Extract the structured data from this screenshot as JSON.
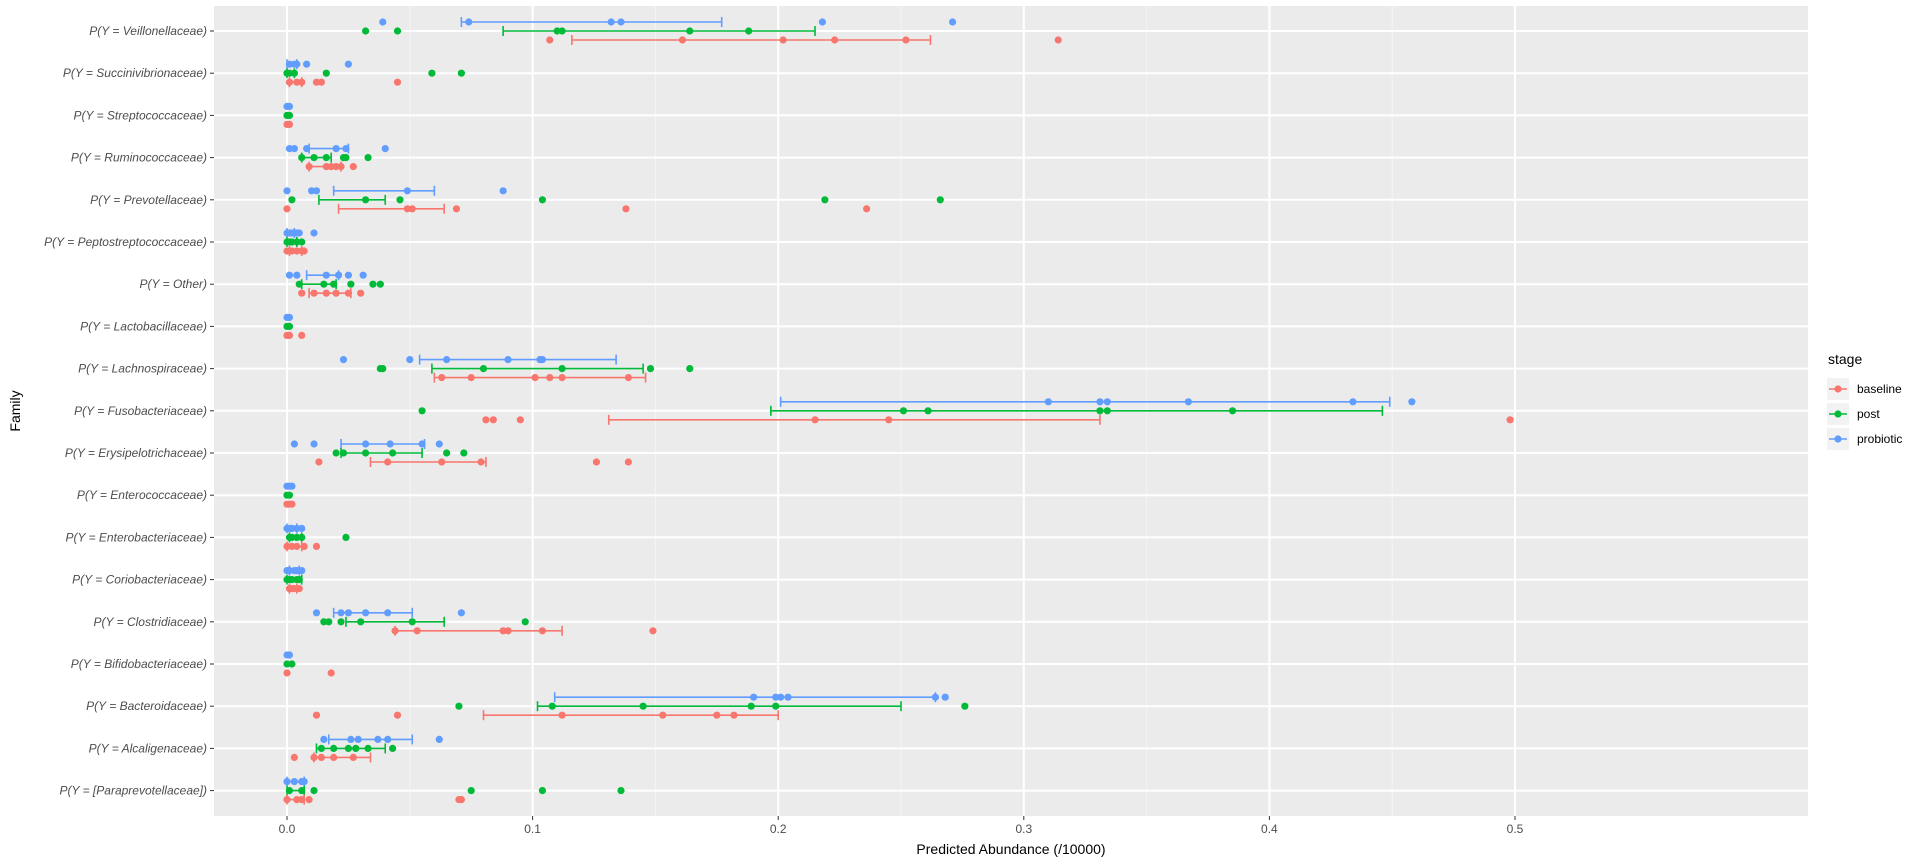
{
  "chart_data": {
    "type": "scatter",
    "title": "",
    "xlabel": "Predicted Abundance (/10000)",
    "ylabel": "Family",
    "xlim": [
      -0.025,
      0.525
    ],
    "xticks": [
      0,
      0.1,
      0.2,
      0.3,
      0.4,
      0.5
    ],
    "xtick_labels": [
      "0.0",
      "0.1",
      "0.2",
      "0.3",
      "0.4",
      "0.5"
    ],
    "grid": true,
    "legend_position": "right",
    "legend_title": "stage",
    "series_colors": {
      "baseline": "#F8766D",
      "post": "#00BA38",
      "probiotic": "#619CFF"
    },
    "stages": [
      "baseline",
      "post",
      "probiotic"
    ],
    "categories": [
      "P(Y = Veillonellaceae)",
      "P(Y = Succinivibrionaceae)",
      "P(Y = Streptococcaceae)",
      "P(Y = Ruminococcaceae)",
      "P(Y = Prevotellaceae)",
      "P(Y = Peptostreptococcaceae)",
      "P(Y = Other)",
      "P(Y = Lactobacillaceae)",
      "P(Y = Lachnospiraceae)",
      "P(Y = Fusobacteriaceae)",
      "P(Y = Erysipelotrichaceae)",
      "P(Y = Enterococcaceae)",
      "P(Y = Enterobacteriaceae)",
      "P(Y = Coriobacteriaceae)",
      "P(Y = Clostridiaceae)",
      "P(Y = Bifidobacteriaceae)",
      "P(Y = Bacteroidaceae)",
      "P(Y = Alcaligenaceae)",
      "P(Y = [Paraprevotellaceae])"
    ],
    "groups": [
      {
        "family": "P(Y = Veillonellaceae)",
        "series": [
          {
            "stage": "probiotic",
            "points": [
              0.039,
              0.074,
              0.132,
              0.136,
              0.218,
              0.271
            ],
            "interval": [
              0.071,
              0.177
            ]
          },
          {
            "stage": "post",
            "points": [
              0.032,
              0.045,
              0.11,
              0.112,
              0.164,
              0.188
            ],
            "interval": [
              0.088,
              0.215
            ]
          },
          {
            "stage": "baseline",
            "points": [
              0.107,
              0.161,
              0.202,
              0.223,
              0.252,
              0.314
            ],
            "interval": [
              0.116,
              0.262
            ]
          }
        ]
      },
      {
        "family": "P(Y = Succinivibrionaceae)",
        "series": [
          {
            "stage": "probiotic",
            "points": [
              0.001,
              0.003,
              0.004,
              0.008,
              0.025
            ],
            "interval": [
              0.0,
              0.004
            ]
          },
          {
            "stage": "post",
            "points": [
              0.0,
              0.001,
              0.003,
              0.016,
              0.059,
              0.071
            ],
            "interval": [
              0.0,
              0.003
            ]
          },
          {
            "stage": "baseline",
            "points": [
              0.001,
              0.004,
              0.006,
              0.012,
              0.014,
              0.045
            ],
            "interval": [
              0.001,
              0.006
            ]
          }
        ]
      },
      {
        "family": "P(Y = Streptococcaceae)",
        "series": [
          {
            "stage": "probiotic",
            "points": [
              0.0,
              0.001
            ],
            "interval": null
          },
          {
            "stage": "post",
            "points": [
              0.0,
              0.001
            ],
            "interval": null
          },
          {
            "stage": "baseline",
            "points": [
              0.0,
              0.001
            ],
            "interval": null
          }
        ]
      },
      {
        "family": "P(Y = Ruminococcaceae)",
        "series": [
          {
            "stage": "probiotic",
            "points": [
              0.001,
              0.003,
              0.008,
              0.02,
              0.024,
              0.04
            ],
            "interval": [
              0.009,
              0.025
            ]
          },
          {
            "stage": "post",
            "points": [
              0.006,
              0.011,
              0.016,
              0.023,
              0.024,
              0.033
            ],
            "interval": [
              0.006,
              0.018
            ]
          },
          {
            "stage": "baseline",
            "points": [
              0.009,
              0.016,
              0.018,
              0.02,
              0.022,
              0.027
            ],
            "interval": [
              0.009,
              0.022
            ]
          }
        ]
      },
      {
        "family": "P(Y = Prevotellaceae)",
        "series": [
          {
            "stage": "probiotic",
            "points": [
              0.0,
              0.01,
              0.012,
              0.049,
              0.088
            ],
            "interval": [
              0.019,
              0.06
            ]
          },
          {
            "stage": "post",
            "points": [
              0.002,
              0.032,
              0.046,
              0.104,
              0.219,
              0.266
            ],
            "interval": [
              0.013,
              0.04
            ]
          },
          {
            "stage": "baseline",
            "points": [
              0.0,
              0.049,
              0.051,
              0.069,
              0.138,
              0.236
            ],
            "interval": [
              0.021,
              0.064
            ]
          }
        ]
      },
      {
        "family": "P(Y = Peptostreptococcaceae)",
        "series": [
          {
            "stage": "probiotic",
            "points": [
              0.0,
              0.001,
              0.002,
              0.004,
              0.005,
              0.011
            ],
            "interval": [
              0.0,
              0.003
            ]
          },
          {
            "stage": "post",
            "points": [
              0.0,
              0.001,
              0.002,
              0.004,
              0.006
            ],
            "interval": [
              0.0,
              0.004
            ]
          },
          {
            "stage": "baseline",
            "points": [
              0.0,
              0.002,
              0.004,
              0.006,
              0.007
            ],
            "interval": [
              0.001,
              0.006
            ]
          }
        ]
      },
      {
        "family": "P(Y = Other)",
        "series": [
          {
            "stage": "probiotic",
            "points": [
              0.001,
              0.004,
              0.016,
              0.021,
              0.025,
              0.031
            ],
            "interval": [
              0.008,
              0.021
            ]
          },
          {
            "stage": "post",
            "points": [
              0.005,
              0.015,
              0.019,
              0.026,
              0.035,
              0.038
            ],
            "interval": [
              0.006,
              0.02
            ]
          },
          {
            "stage": "baseline",
            "points": [
              0.006,
              0.011,
              0.016,
              0.02,
              0.025,
              0.03
            ],
            "interval": [
              0.009,
              0.026
            ]
          }
        ]
      },
      {
        "family": "P(Y = Lactobacillaceae)",
        "series": [
          {
            "stage": "probiotic",
            "points": [
              0.0,
              0.001
            ],
            "interval": null
          },
          {
            "stage": "post",
            "points": [
              0.0,
              0.001
            ],
            "interval": null
          },
          {
            "stage": "baseline",
            "points": [
              0.0,
              0.001,
              0.006
            ],
            "interval": null
          }
        ]
      },
      {
        "family": "P(Y = Lachnospiraceae)",
        "series": [
          {
            "stage": "probiotic",
            "points": [
              0.023,
              0.05,
              0.065,
              0.09,
              0.103,
              0.104
            ],
            "interval": [
              0.054,
              0.134
            ]
          },
          {
            "stage": "post",
            "points": [
              0.038,
              0.039,
              0.08,
              0.112,
              0.148,
              0.164
            ],
            "interval": [
              0.059,
              0.145
            ]
          },
          {
            "stage": "baseline",
            "points": [
              0.063,
              0.075,
              0.101,
              0.107,
              0.112,
              0.139
            ],
            "interval": [
              0.06,
              0.146
            ]
          }
        ]
      },
      {
        "family": "P(Y = Fusobacteriaceae)",
        "series": [
          {
            "stage": "probiotic",
            "points": [
              0.31,
              0.331,
              0.334,
              0.367,
              0.434,
              0.458
            ],
            "interval": [
              0.201,
              0.449
            ]
          },
          {
            "stage": "post",
            "points": [
              0.055,
              0.251,
              0.261,
              0.331,
              0.334,
              0.385
            ],
            "interval": [
              0.197,
              0.446
            ]
          },
          {
            "stage": "baseline",
            "points": [
              0.081,
              0.084,
              0.095,
              0.215,
              0.245,
              0.498
            ],
            "interval": [
              0.131,
              0.331
            ]
          }
        ]
      },
      {
        "family": "P(Y = Erysipelotrichaceae)",
        "series": [
          {
            "stage": "probiotic",
            "points": [
              0.003,
              0.011,
              0.032,
              0.042,
              0.055,
              0.062
            ],
            "interval": [
              0.022,
              0.056
            ]
          },
          {
            "stage": "post",
            "points": [
              0.02,
              0.023,
              0.032,
              0.043,
              0.065,
              0.072
            ],
            "interval": [
              0.022,
              0.055
            ]
          },
          {
            "stage": "baseline",
            "points": [
              0.013,
              0.041,
              0.063,
              0.079,
              0.126,
              0.139
            ],
            "interval": [
              0.034,
              0.081
            ]
          }
        ]
      },
      {
        "family": "P(Y = Enterococcaceae)",
        "series": [
          {
            "stage": "probiotic",
            "points": [
              0.0,
              0.001,
              0.002
            ],
            "interval": null
          },
          {
            "stage": "post",
            "points": [
              0.0,
              0.001
            ],
            "interval": null
          },
          {
            "stage": "baseline",
            "points": [
              0.0,
              0.001,
              0.002
            ],
            "interval": null
          }
        ]
      },
      {
        "family": "P(Y = Enterobacteriaceae)",
        "series": [
          {
            "stage": "probiotic",
            "points": [
              0.0,
              0.001,
              0.002,
              0.004,
              0.006
            ],
            "interval": [
              0.0,
              0.004
            ]
          },
          {
            "stage": "post",
            "points": [
              0.001,
              0.002,
              0.004,
              0.006,
              0.024
            ],
            "interval": [
              0.001,
              0.006
            ]
          },
          {
            "stage": "baseline",
            "points": [
              0.0,
              0.002,
              0.004,
              0.007,
              0.012
            ],
            "interval": [
              0.0,
              0.006
            ]
          }
        ]
      },
      {
        "family": "P(Y = Coriobacteriaceae)",
        "series": [
          {
            "stage": "probiotic",
            "points": [
              0.0,
              0.001,
              0.003,
              0.004,
              0.006
            ],
            "interval": [
              0.001,
              0.005
            ]
          },
          {
            "stage": "post",
            "points": [
              0.0,
              0.001,
              0.002,
              0.004,
              0.005
            ],
            "interval": [
              0.0,
              0.006
            ]
          },
          {
            "stage": "baseline",
            "points": [
              0.001,
              0.002,
              0.003,
              0.005
            ],
            "interval": [
              0.001,
              0.004
            ]
          }
        ]
      },
      {
        "family": "P(Y = Clostridiaceae)",
        "series": [
          {
            "stage": "probiotic",
            "points": [
              0.012,
              0.022,
              0.025,
              0.032,
              0.041,
              0.071
            ],
            "interval": [
              0.019,
              0.051
            ]
          },
          {
            "stage": "post",
            "points": [
              0.015,
              0.017,
              0.022,
              0.03,
              0.051,
              0.097
            ],
            "interval": [
              0.024,
              0.064
            ]
          },
          {
            "stage": "baseline",
            "points": [
              0.044,
              0.053,
              0.088,
              0.09,
              0.104,
              0.149
            ],
            "interval": [
              0.044,
              0.112
            ]
          }
        ]
      },
      {
        "family": "P(Y = Bifidobacteriaceae)",
        "series": [
          {
            "stage": "probiotic",
            "points": [
              0.0,
              0.001
            ],
            "interval": null
          },
          {
            "stage": "post",
            "points": [
              0.0,
              0.002
            ],
            "interval": null
          },
          {
            "stage": "baseline",
            "points": [
              0.0,
              0.018
            ],
            "interval": null
          }
        ]
      },
      {
        "family": "P(Y = Bacteroidaceae)",
        "series": [
          {
            "stage": "probiotic",
            "points": [
              0.19,
              0.199,
              0.201,
              0.204,
              0.264,
              0.268
            ],
            "interval": [
              0.109,
              0.264
            ]
          },
          {
            "stage": "post",
            "points": [
              0.07,
              0.108,
              0.145,
              0.189,
              0.199,
              0.276
            ],
            "interval": [
              0.102,
              0.25
            ]
          },
          {
            "stage": "baseline",
            "points": [
              0.012,
              0.045,
              0.112,
              0.153,
              0.175,
              0.182
            ],
            "interval": [
              0.08,
              0.2
            ]
          }
        ]
      },
      {
        "family": "P(Y = Alcaligenaceae)",
        "series": [
          {
            "stage": "probiotic",
            "points": [
              0.015,
              0.026,
              0.029,
              0.037,
              0.041,
              0.062
            ],
            "interval": [
              0.017,
              0.051
            ]
          },
          {
            "stage": "post",
            "points": [
              0.014,
              0.019,
              0.025,
              0.028,
              0.033,
              0.043
            ],
            "interval": [
              0.012,
              0.04
            ]
          },
          {
            "stage": "baseline",
            "points": [
              0.003,
              0.011,
              0.014,
              0.019,
              0.027
            ],
            "interval": [
              0.011,
              0.034
            ]
          }
        ]
      },
      {
        "family": "P(Y = [Paraprevotellaceae])",
        "series": [
          {
            "stage": "probiotic",
            "points": [
              0.0,
              0.003,
              0.006,
              0.007
            ],
            "interval": [
              0.0,
              0.007
            ]
          },
          {
            "stage": "post",
            "points": [
              0.001,
              0.006,
              0.011,
              0.075,
              0.104,
              0.136
            ],
            "interval": [
              0.0,
              0.007
            ]
          },
          {
            "stage": "baseline",
            "points": [
              0.0,
              0.004,
              0.006,
              0.009,
              0.07,
              0.071
            ],
            "interval": [
              0.0,
              0.007
            ]
          }
        ]
      }
    ]
  }
}
